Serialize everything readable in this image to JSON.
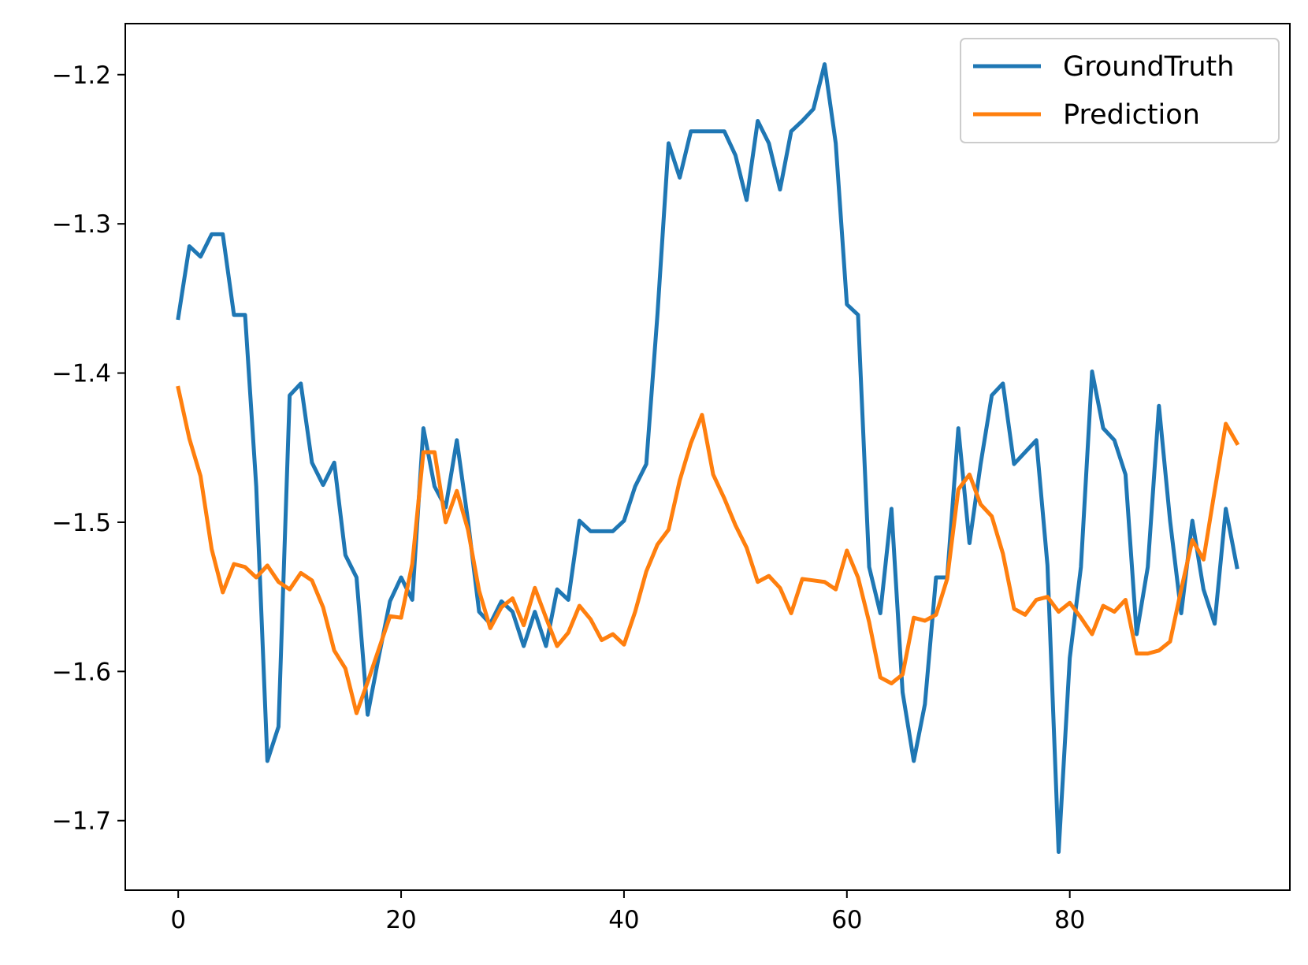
{
  "chart_data": {
    "type": "line",
    "xlim": [
      -4.75,
      99.75
    ],
    "ylim": [
      -1.7466,
      -1.1658
    ],
    "xticks": [
      0,
      20,
      40,
      60,
      80
    ],
    "xtick_labels": [
      "0",
      "20",
      "40",
      "60",
      "80"
    ],
    "yticks": [
      -1.2,
      -1.3,
      -1.4,
      -1.5,
      -1.6,
      -1.7
    ],
    "ytick_labels": [
      "−1.2",
      "−1.3",
      "−1.4",
      "−1.5",
      "−1.6",
      "−1.7"
    ],
    "grid": false,
    "legend": {
      "placement": "top-right"
    },
    "series": [
      {
        "name": "GroundTruth",
        "color": "#1f77b4",
        "values": [
          -1.363,
          -1.315,
          -1.322,
          -1.307,
          -1.307,
          -1.361,
          -1.361,
          -1.476,
          -1.66,
          -1.637,
          -1.415,
          -1.407,
          -1.46,
          -1.475,
          -1.46,
          -1.522,
          -1.537,
          -1.629,
          -1.59,
          -1.553,
          -1.537,
          -1.552,
          -1.437,
          -1.476,
          -1.49,
          -1.445,
          -1.499,
          -1.56,
          -1.568,
          -1.553,
          -1.56,
          -1.583,
          -1.56,
          -1.583,
          -1.545,
          -1.552,
          -1.499,
          -1.506,
          -1.506,
          -1.506,
          -1.499,
          -1.476,
          -1.461,
          -1.361,
          -1.246,
          -1.269,
          -1.238,
          -1.238,
          -1.238,
          -1.238,
          -1.254,
          -1.284,
          -1.231,
          -1.246,
          -1.277,
          -1.238,
          -1.231,
          -1.223,
          -1.193,
          -1.246,
          -1.354,
          -1.361,
          -1.53,
          -1.561,
          -1.491,
          -1.614,
          -1.66,
          -1.622,
          -1.537,
          -1.537,
          -1.437,
          -1.514,
          -1.461,
          -1.415,
          -1.407,
          -1.461,
          -1.453,
          -1.445,
          -1.529,
          -1.721,
          -1.591,
          -1.53,
          -1.399,
          -1.437,
          -1.445,
          -1.468,
          -1.575,
          -1.53,
          -1.422,
          -1.499,
          -1.561,
          -1.499,
          -1.545,
          -1.568,
          -1.491,
          -1.53
        ]
      },
      {
        "name": "Prediction",
        "color": "#ff7f0e",
        "values": [
          -1.41,
          -1.444,
          -1.469,
          -1.518,
          -1.547,
          -1.528,
          -1.53,
          -1.537,
          -1.529,
          -1.54,
          -1.545,
          -1.534,
          -1.539,
          -1.557,
          -1.586,
          -1.598,
          -1.628,
          -1.607,
          -1.585,
          -1.563,
          -1.564,
          -1.528,
          -1.453,
          -1.453,
          -1.5,
          -1.479,
          -1.505,
          -1.546,
          -1.571,
          -1.557,
          -1.551,
          -1.569,
          -1.544,
          -1.564,
          -1.583,
          -1.574,
          -1.556,
          -1.565,
          -1.579,
          -1.575,
          -1.582,
          -1.56,
          -1.533,
          -1.515,
          -1.505,
          -1.472,
          -1.447,
          -1.428,
          -1.468,
          -1.484,
          -1.502,
          -1.517,
          -1.54,
          -1.536,
          -1.544,
          -1.561,
          -1.538,
          -1.539,
          -1.54,
          -1.545,
          -1.519,
          -1.537,
          -1.567,
          -1.604,
          -1.608,
          -1.602,
          -1.564,
          -1.566,
          -1.562,
          -1.538,
          -1.478,
          -1.468,
          -1.488,
          -1.496,
          -1.521,
          -1.558,
          -1.562,
          -1.552,
          -1.55,
          -1.56,
          -1.554,
          -1.564,
          -1.575,
          -1.556,
          -1.56,
          -1.552,
          -1.588,
          -1.588,
          -1.586,
          -1.58,
          -1.545,
          -1.512,
          -1.525,
          -1.479,
          -1.434,
          -1.447
        ]
      }
    ]
  }
}
